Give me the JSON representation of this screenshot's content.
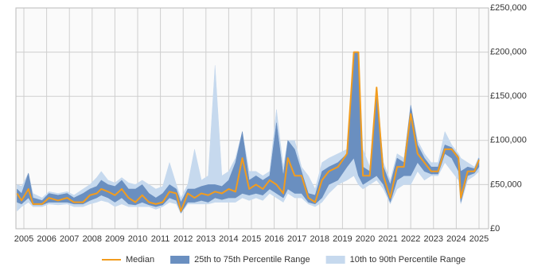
{
  "chart_data": {
    "type": "percentile-band-line",
    "x": [
      2004.7,
      2004.9,
      2005.2,
      2005.4,
      2005.8,
      2006.1,
      2006.5,
      2006.9,
      2007.2,
      2007.6,
      2007.9,
      2008.2,
      2008.4,
      2008.7,
      2009.0,
      2009.3,
      2009.6,
      2009.9,
      2010.2,
      2010.5,
      2010.8,
      2011.1,
      2011.4,
      2011.7,
      2011.9,
      2012.2,
      2012.5,
      2012.8,
      2013.1,
      2013.4,
      2013.7,
      2014.0,
      2014.3,
      2014.6,
      2014.9,
      2015.2,
      2015.5,
      2015.8,
      2016.1,
      2016.4,
      2016.6,
      2016.9,
      2017.2,
      2017.5,
      2017.8,
      2018.1,
      2018.4,
      2018.8,
      2019.2,
      2019.5,
      2019.7,
      2019.9,
      2020.2,
      2020.5,
      2020.8,
      2021.1,
      2021.4,
      2021.7,
      2022.0,
      2022.3,
      2022.6,
      2022.9,
      2023.2,
      2023.5,
      2023.8,
      2024.1,
      2024.2,
      2024.5,
      2024.8,
      2025.0
    ],
    "series": [
      {
        "name": "10th to 90th Percentile Range",
        "color": "#c6d9ee",
        "lower": [
          20000,
          25000,
          30000,
          25000,
          25000,
          28000,
          27000,
          28000,
          25000,
          25000,
          28000,
          30000,
          32000,
          30000,
          25000,
          28000,
          25000,
          25000,
          25000,
          25000,
          22000,
          25000,
          30000,
          28000,
          17000,
          28000,
          28000,
          28000,
          28000,
          30000,
          30000,
          30000,
          30000,
          35000,
          32000,
          35000,
          32000,
          40000,
          35000,
          30000,
          40000,
          35000,
          35000,
          28000,
          25000,
          30000,
          40000,
          50000,
          55000,
          60000,
          50000,
          45000,
          50000,
          55000,
          45000,
          28000,
          45000,
          50000,
          50000,
          65000,
          55000,
          60000,
          60000,
          75000,
          65000,
          55000,
          28000,
          55000,
          60000,
          65000
        ],
        "upper": [
          50000,
          48000,
          63000,
          40000,
          35000,
          42000,
          40000,
          42000,
          38000,
          45000,
          50000,
          58000,
          65000,
          55000,
          52000,
          58000,
          52000,
          50000,
          55000,
          50000,
          45000,
          48000,
          75000,
          50000,
          35000,
          50000,
          90000,
          55000,
          60000,
          185000,
          60000,
          65000,
          80000,
          110000,
          65000,
          65000,
          60000,
          65000,
          135000,
          70000,
          100000,
          100000,
          70000,
          60000,
          45000,
          75000,
          80000,
          85000,
          90000,
          200000,
          200000,
          90000,
          70000,
          160000,
          75000,
          55000,
          85000,
          80000,
          140000,
          100000,
          85000,
          75000,
          75000,
          110000,
          95000,
          85000,
          80000,
          75000,
          70000,
          82000
        ]
      },
      {
        "name": "25th to 75th Percentile Range",
        "color": "#6a8fc0",
        "lower": [
          30000,
          28000,
          35000,
          27000,
          27000,
          30000,
          30000,
          30000,
          28000,
          28000,
          32000,
          35000,
          38000,
          35000,
          30000,
          35000,
          28000,
          27000,
          30000,
          27000,
          25000,
          27000,
          35000,
          32000,
          18000,
          30000,
          30000,
          32000,
          30000,
          35000,
          33000,
          35000,
          35000,
          40000,
          38000,
          40000,
          38000,
          45000,
          40000,
          35000,
          45000,
          40000,
          40000,
          30000,
          28000,
          35000,
          50000,
          55000,
          70000,
          80000,
          60000,
          50000,
          55000,
          60000,
          50000,
          30000,
          55000,
          60000,
          60000,
          75000,
          65000,
          62000,
          62000,
          85000,
          80000,
          65000,
          30000,
          60000,
          63000,
          70000
        ],
        "upper": [
          45000,
          40000,
          63000,
          35000,
          32000,
          40000,
          38000,
          40000,
          35000,
          40000,
          45000,
          48000,
          55000,
          50000,
          48000,
          55000,
          45000,
          45000,
          50000,
          40000,
          35000,
          40000,
          50000,
          45000,
          30000,
          45000,
          45000,
          48000,
          50000,
          50000,
          48000,
          55000,
          75000,
          110000,
          55000,
          60000,
          55000,
          60000,
          120000,
          60000,
          100000,
          90000,
          65000,
          40000,
          38000,
          65000,
          70000,
          75000,
          85000,
          200000,
          200000,
          70000,
          65000,
          160000,
          70000,
          50000,
          80000,
          75000,
          140000,
          95000,
          80000,
          70000,
          70000,
          95000,
          92000,
          82000,
          65000,
          70000,
          68000,
          80000
        ]
      },
      {
        "name": "Median",
        "color": "#f29c1e",
        "values": [
          40000,
          32000,
          45000,
          28000,
          28000,
          35000,
          32000,
          35000,
          30000,
          30000,
          38000,
          40000,
          45000,
          42000,
          38000,
          45000,
          35000,
          30000,
          38000,
          30000,
          28000,
          30000,
          42000,
          40000,
          20000,
          40000,
          35000,
          40000,
          38000,
          42000,
          40000,
          45000,
          42000,
          80000,
          45000,
          50000,
          45000,
          55000,
          50000,
          40000,
          80000,
          60000,
          60000,
          35000,
          30000,
          55000,
          65000,
          70000,
          85000,
          200000,
          200000,
          60000,
          60000,
          160000,
          60000,
          35000,
          70000,
          70000,
          130000,
          85000,
          75000,
          65000,
          65000,
          90000,
          90000,
          80000,
          35000,
          65000,
          65000,
          78000
        ]
      }
    ],
    "xlim": [
      2004.65,
      2025.42
    ],
    "xticks": [
      2005,
      2006,
      2007,
      2008,
      2009,
      2010,
      2011,
      2012,
      2013,
      2014,
      2015,
      2016,
      2017,
      2018,
      2019,
      2020,
      2021,
      2022,
      2023,
      2024,
      2025
    ],
    "ylim": [
      0,
      250000
    ],
    "yticks": [
      {
        "value": 0,
        "label": "£0"
      },
      {
        "value": 50000,
        "label": "£50,000"
      },
      {
        "value": 100000,
        "label": "£100,000"
      },
      {
        "value": 150000,
        "label": "£150,000"
      },
      {
        "value": 200000,
        "label": "£200,000"
      },
      {
        "value": 250000,
        "label": "£250,000"
      }
    ],
    "grid": true
  }
}
